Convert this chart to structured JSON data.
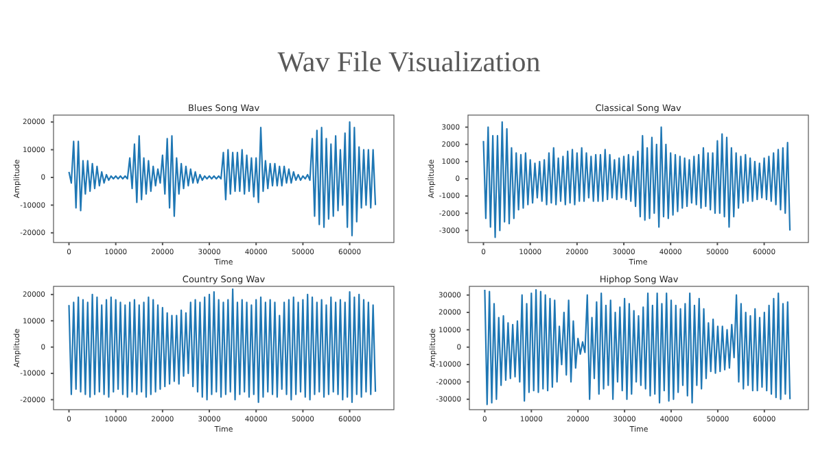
{
  "chart_data": [
    {
      "type": "other",
      "title": "Wav File Visualization"
    },
    {
      "type": "line",
      "title": "Blues Song Wav",
      "xlabel": "Time",
      "ylabel": "Amplitude",
      "xlim": [
        -3300,
        69450
      ],
      "ylim": [
        -23500,
        22500
      ],
      "xticks": [
        0,
        10000,
        20000,
        30000,
        40000,
        50000,
        60000
      ],
      "yticks": [
        -20000,
        -10000,
        0,
        10000,
        20000
      ],
      "grid": false,
      "x": [
        0,
        500,
        1000,
        1500,
        2000,
        2500,
        3000,
        3500,
        4000,
        4500,
        5000,
        5500,
        6000,
        6500,
        7000,
        7500,
        8000,
        8500,
        9000,
        9500,
        10000,
        10500,
        11000,
        11500,
        12000,
        12500,
        13000,
        13500,
        14000,
        14500,
        15000,
        15500,
        16000,
        16500,
        17000,
        17500,
        18000,
        18500,
        19000,
        19500,
        20000,
        20500,
        21000,
        21500,
        22000,
        22500,
        23000,
        23500,
        24000,
        24500,
        25000,
        25500,
        26000,
        26500,
        27000,
        27500,
        28000,
        28500,
        29000,
        29500,
        30000,
        30500,
        31000,
        31500,
        32000,
        32500,
        33000,
        33500,
        34000,
        34500,
        35000,
        35500,
        36000,
        36500,
        37000,
        37500,
        38000,
        38500,
        39000,
        39500,
        40000,
        40500,
        41000,
        41500,
        42000,
        42500,
        43000,
        43500,
        44000,
        44500,
        45000,
        45500,
        46000,
        46500,
        47000,
        47500,
        48000,
        48500,
        49000,
        49500,
        50000,
        50500,
        51000,
        51500,
        52000,
        52500,
        53000,
        53500,
        54000,
        54500,
        55000,
        55500,
        56000,
        56500,
        57000,
        57500,
        58000,
        58500,
        59000,
        59500,
        60000,
        60500,
        61000,
        61500,
        62000,
        62500,
        63000,
        63500,
        64000,
        64500,
        65000,
        65500
      ],
      "series": [
        {
          "color": "#1f77b4",
          "values": [
            2000,
            -2000,
            13000,
            -11000,
            13000,
            -12000,
            6000,
            -6000,
            6000,
            -5000,
            5000,
            -4000,
            4000,
            -3000,
            2000,
            -2000,
            1000,
            -1000,
            500,
            -500,
            500,
            -500,
            500,
            -500,
            500,
            -500,
            7000,
            -4000,
            12000,
            -9000,
            15000,
            -8000,
            7000,
            -6000,
            6000,
            -5000,
            4000,
            -3000,
            3000,
            -2000,
            8000,
            -6000,
            14000,
            -11000,
            15000,
            -14000,
            7000,
            -6000,
            5000,
            -4000,
            4000,
            -3000,
            3000,
            -2000,
            2000,
            -2000,
            1000,
            -1000,
            500,
            -500,
            500,
            -500,
            500,
            -500,
            500,
            -500,
            9000,
            -8000,
            10000,
            -6000,
            9000,
            -5000,
            9000,
            -5000,
            10000,
            -6000,
            8000,
            -5000,
            7000,
            -7000,
            7000,
            -9000,
            18000,
            -5000,
            6000,
            -4000,
            5000,
            -3000,
            5000,
            -3000,
            4000,
            -3000,
            4000,
            -2000,
            3000,
            -2000,
            2000,
            -1000,
            1000,
            -1000,
            500,
            -500,
            1000,
            -1000,
            14000,
            -14000,
            17000,
            -17000,
            18000,
            -18000,
            14000,
            -15000,
            12000,
            -14000,
            15000,
            -12000,
            10000,
            -10000,
            16000,
            -18000,
            20000,
            -21000,
            18000,
            -16000,
            11000,
            -11000,
            10000,
            -10000,
            10000,
            -11000,
            10000,
            -10000
          ]
        }
      ]
    },
    {
      "type": "line",
      "title": "Classical Song Wav",
      "xlabel": "Time",
      "ylabel": "Amplitude",
      "xlim": [
        -3300,
        69450
      ],
      "ylim": [
        -3700,
        3700
      ],
      "xticks": [
        0,
        10000,
        20000,
        30000,
        40000,
        50000,
        60000
      ],
      "yticks": [
        -3000,
        -2000,
        -1000,
        0,
        1000,
        2000,
        3000
      ],
      "grid": false,
      "x": [
        0,
        500,
        1000,
        1500,
        2000,
        2500,
        3000,
        3500,
        4000,
        4500,
        5000,
        5500,
        6000,
        6500,
        7000,
        7500,
        8000,
        8500,
        9000,
        9500,
        10000,
        10500,
        11000,
        11500,
        12000,
        12500,
        13000,
        13500,
        14000,
        14500,
        15000,
        15500,
        16000,
        16500,
        17000,
        17500,
        18000,
        18500,
        19000,
        19500,
        20000,
        20500,
        21000,
        21500,
        22000,
        22500,
        23000,
        23500,
        24000,
        24500,
        25000,
        25500,
        26000,
        26500,
        27000,
        27500,
        28000,
        28500,
        29000,
        29500,
        30000,
        30500,
        31000,
        31500,
        32000,
        32500,
        33000,
        33500,
        34000,
        34500,
        35000,
        35500,
        36000,
        36500,
        37000,
        37500,
        38000,
        38500,
        39000,
        39500,
        40000,
        40500,
        41000,
        41500,
        42000,
        42500,
        43000,
        43500,
        44000,
        44500,
        45000,
        45500,
        46000,
        46500,
        47000,
        47500,
        48000,
        48500,
        49000,
        49500,
        50000,
        50500,
        51000,
        51500,
        52000,
        52500,
        53000,
        53500,
        54000,
        54500,
        55000,
        55500,
        56000,
        56500,
        57000,
        57500,
        58000,
        58500,
        59000,
        59500,
        60000,
        60500,
        61000,
        61500,
        62000,
        62500,
        63000,
        63500,
        64000,
        64500,
        65000,
        65500
      ],
      "series": [
        {
          "color": "#1f77b4",
          "values": [
            2200,
            -2300,
            3000,
            -2800,
            2500,
            -3400,
            2500,
            -3000,
            3300,
            -2500,
            2900,
            -2600,
            1800,
            -2300,
            1500,
            -1800,
            1400,
            -1700,
            1500,
            -1500,
            1100,
            -1400,
            900,
            -1100,
            1000,
            -1300,
            1100,
            -1500,
            1500,
            -1400,
            1800,
            -1500,
            1200,
            -1300,
            1300,
            -1500,
            1600,
            -1400,
            1700,
            -1500,
            1500,
            -1300,
            1800,
            -1300,
            1500,
            -1100,
            1300,
            -1300,
            1400,
            -1300,
            1400,
            -1300,
            1700,
            -1200,
            1400,
            -1100,
            1100,
            -1200,
            1200,
            -1100,
            1300,
            -1200,
            1400,
            -1300,
            1300,
            -1600,
            1600,
            -2200,
            2500,
            -2400,
            1800,
            -2300,
            2400,
            -2000,
            2000,
            -2800,
            3000,
            -2200,
            2000,
            -2300,
            1500,
            -2100,
            1400,
            -1900,
            1300,
            -1700,
            1200,
            -1600,
            1100,
            -1400,
            1300,
            -1500,
            1400,
            -1700,
            1800,
            -1600,
            1500,
            -1800,
            1500,
            -2000,
            2200,
            -2000,
            2600,
            -2200,
            2400,
            -2800,
            1800,
            -2200,
            1500,
            -1700,
            1300,
            -1400,
            1400,
            -1300,
            1200,
            -1300,
            1000,
            -1200,
            900,
            -1100,
            1200,
            -1200,
            1300,
            -1300,
            1500,
            -1500,
            1700,
            -1800,
            1800,
            -2000,
            2100,
            -3000
          ]
        }
      ]
    },
    {
      "type": "line",
      "title": "Country Song Wav",
      "xlabel": "Time",
      "ylabel": "Amplitude",
      "xlim": [
        -3300,
        69450
      ],
      "ylim": [
        -23800,
        23100
      ],
      "xticks": [
        0,
        10000,
        20000,
        30000,
        40000,
        50000,
        60000
      ],
      "yticks": [
        -20000,
        -10000,
        0,
        10000,
        20000
      ],
      "grid": false,
      "x": [
        0,
        500,
        1000,
        1500,
        2000,
        2500,
        3000,
        3500,
        4000,
        4500,
        5000,
        5500,
        6000,
        6500,
        7000,
        7500,
        8000,
        8500,
        9000,
        9500,
        10000,
        10500,
        11000,
        11500,
        12000,
        12500,
        13000,
        13500,
        14000,
        14500,
        15000,
        15500,
        16000,
        16500,
        17000,
        17500,
        18000,
        18500,
        19000,
        19500,
        20000,
        20500,
        21000,
        21500,
        22000,
        22500,
        23000,
        23500,
        24000,
        24500,
        25000,
        25500,
        26000,
        26500,
        27000,
        27500,
        28000,
        28500,
        29000,
        29500,
        30000,
        30500,
        31000,
        31500,
        32000,
        32500,
        33000,
        33500,
        34000,
        34500,
        35000,
        35500,
        36000,
        36500,
        37000,
        37500,
        38000,
        38500,
        39000,
        39500,
        40000,
        40500,
        41000,
        41500,
        42000,
        42500,
        43000,
        43500,
        44000,
        44500,
        45000,
        45500,
        46000,
        46500,
        47000,
        47500,
        48000,
        48500,
        49000,
        49500,
        50000,
        50500,
        51000,
        51500,
        52000,
        52500,
        53000,
        53500,
        54000,
        54500,
        55000,
        55500,
        56000,
        56500,
        57000,
        57500,
        58000,
        58500,
        59000,
        59500,
        60000,
        60500,
        61000,
        61500,
        62000,
        62500,
        63000,
        63500,
        64000,
        64500,
        65000,
        65500
      ],
      "series": [
        {
          "color": "#1f77b4",
          "values": [
            16000,
            -18000,
            17000,
            -16000,
            19000,
            -17000,
            18000,
            -18000,
            17000,
            -19000,
            20000,
            -18000,
            19000,
            -17000,
            16000,
            -18000,
            18000,
            -19000,
            19000,
            -17000,
            18000,
            -16000,
            17000,
            -18000,
            16000,
            -19000,
            17000,
            -17000,
            18000,
            -18000,
            16000,
            -17000,
            17000,
            -19000,
            19000,
            -18000,
            18000,
            -17000,
            16000,
            -16000,
            15000,
            -15000,
            13000,
            -14000,
            12000,
            -13000,
            12000,
            -14000,
            14000,
            -11000,
            13000,
            -10000,
            17000,
            -15000,
            18000,
            -17000,
            17000,
            -19000,
            19000,
            -20000,
            20000,
            -18000,
            21000,
            -17000,
            18000,
            -19000,
            17000,
            -18000,
            18000,
            -17000,
            22000,
            -20000,
            17000,
            -18000,
            18000,
            -17000,
            17000,
            -19000,
            16000,
            -18000,
            18000,
            -21000,
            19000,
            -19000,
            17000,
            -17000,
            18000,
            -18000,
            17000,
            -19000,
            12000,
            -16000,
            17000,
            -18000,
            18000,
            -20000,
            19000,
            -18000,
            17000,
            -17000,
            18000,
            -19000,
            20000,
            -20000,
            19000,
            -18000,
            17000,
            -17000,
            18000,
            -19000,
            16000,
            -18000,
            19000,
            -17000,
            17000,
            -18000,
            18000,
            -20000,
            17000,
            -19000,
            21000,
            -21000,
            19000,
            -18000,
            20000,
            -19000,
            18000,
            -17000,
            17000,
            -18000,
            16000,
            -17000
          ]
        }
      ]
    },
    {
      "type": "line",
      "title": "Hiphop Song Wav",
      "xlabel": "Time",
      "ylabel": "Amplitude",
      "xlim": [
        -3300,
        69450
      ],
      "ylim": [
        -36000,
        35000
      ],
      "xticks": [
        0,
        10000,
        20000,
        30000,
        40000,
        50000,
        60000
      ],
      "yticks": [
        -30000,
        -20000,
        -10000,
        0,
        10000,
        20000,
        30000
      ],
      "grid": false,
      "x": [
        0,
        500,
        1000,
        1500,
        2000,
        2500,
        3000,
        3500,
        4000,
        4500,
        5000,
        5500,
        6000,
        6500,
        7000,
        7500,
        8000,
        8500,
        9000,
        9500,
        10000,
        10500,
        11000,
        11500,
        12000,
        12500,
        13000,
        13500,
        14000,
        14500,
        15000,
        15500,
        16000,
        16500,
        17000,
        17500,
        18000,
        18500,
        19000,
        19500,
        20000,
        20500,
        21000,
        21500,
        22000,
        22500,
        23000,
        23500,
        24000,
        24500,
        25000,
        25500,
        26000,
        26500,
        27000,
        27500,
        28000,
        28500,
        29000,
        29500,
        30000,
        30500,
        31000,
        31500,
        32000,
        32500,
        33000,
        33500,
        34000,
        34500,
        35000,
        35500,
        36000,
        36500,
        37000,
        37500,
        38000,
        38500,
        39000,
        39500,
        40000,
        40500,
        41000,
        41500,
        42000,
        42500,
        43000,
        43500,
        44000,
        44500,
        45000,
        45500,
        46000,
        46500,
        47000,
        47500,
        48000,
        48500,
        49000,
        49500,
        50000,
        50500,
        51000,
        51500,
        52000,
        52500,
        53000,
        53500,
        54000,
        54500,
        55000,
        55500,
        56000,
        56500,
        57000,
        57500,
        58000,
        58500,
        59000,
        59500,
        60000,
        60500,
        61000,
        61500,
        62000,
        62500,
        63000,
        63500,
        64000,
        64500,
        65000,
        65500
      ],
      "series": [
        {
          "color": "#1f77b4",
          "values": [
            33000,
            -33000,
            32000,
            -32000,
            25000,
            -30000,
            17000,
            -22000,
            18000,
            -19000,
            14000,
            -18000,
            13000,
            -17000,
            15000,
            -20000,
            30000,
            -31000,
            25000,
            -26000,
            31000,
            -25000,
            33000,
            -26000,
            32000,
            -24000,
            30000,
            -25000,
            28000,
            -23000,
            27000,
            -20000,
            12000,
            -10000,
            20000,
            -16000,
            27000,
            -20000,
            15000,
            -12000,
            5000,
            -4000,
            3000,
            -3000,
            30000,
            -30000,
            17000,
            -18000,
            26000,
            -27000,
            31000,
            -24000,
            24000,
            -22000,
            27000,
            -30000,
            20000,
            -20000,
            23000,
            -25000,
            28000,
            -30000,
            25000,
            -27000,
            21000,
            -20000,
            18000,
            -22000,
            23000,
            -24000,
            31000,
            -28000,
            24000,
            -27000,
            31000,
            -32000,
            25000,
            -25000,
            31000,
            -31000,
            27000,
            -30000,
            24000,
            -26000,
            22000,
            -22000,
            25000,
            -28000,
            31000,
            -32000,
            24000,
            -22000,
            28000,
            -24000,
            22000,
            -18000,
            14000,
            -14000,
            16000,
            -15000,
            12000,
            -14000,
            12000,
            -13000,
            10000,
            -12000,
            13000,
            -6000,
            30000,
            -20000,
            25000,
            -24000,
            20000,
            -22000,
            18000,
            -25000,
            22000,
            -25000,
            17000,
            -23000,
            20000,
            -25000,
            24000,
            -27000,
            28000,
            -29000,
            31000,
            -30000,
            25000,
            -27000,
            26000,
            -30000
          ]
        }
      ]
    }
  ]
}
